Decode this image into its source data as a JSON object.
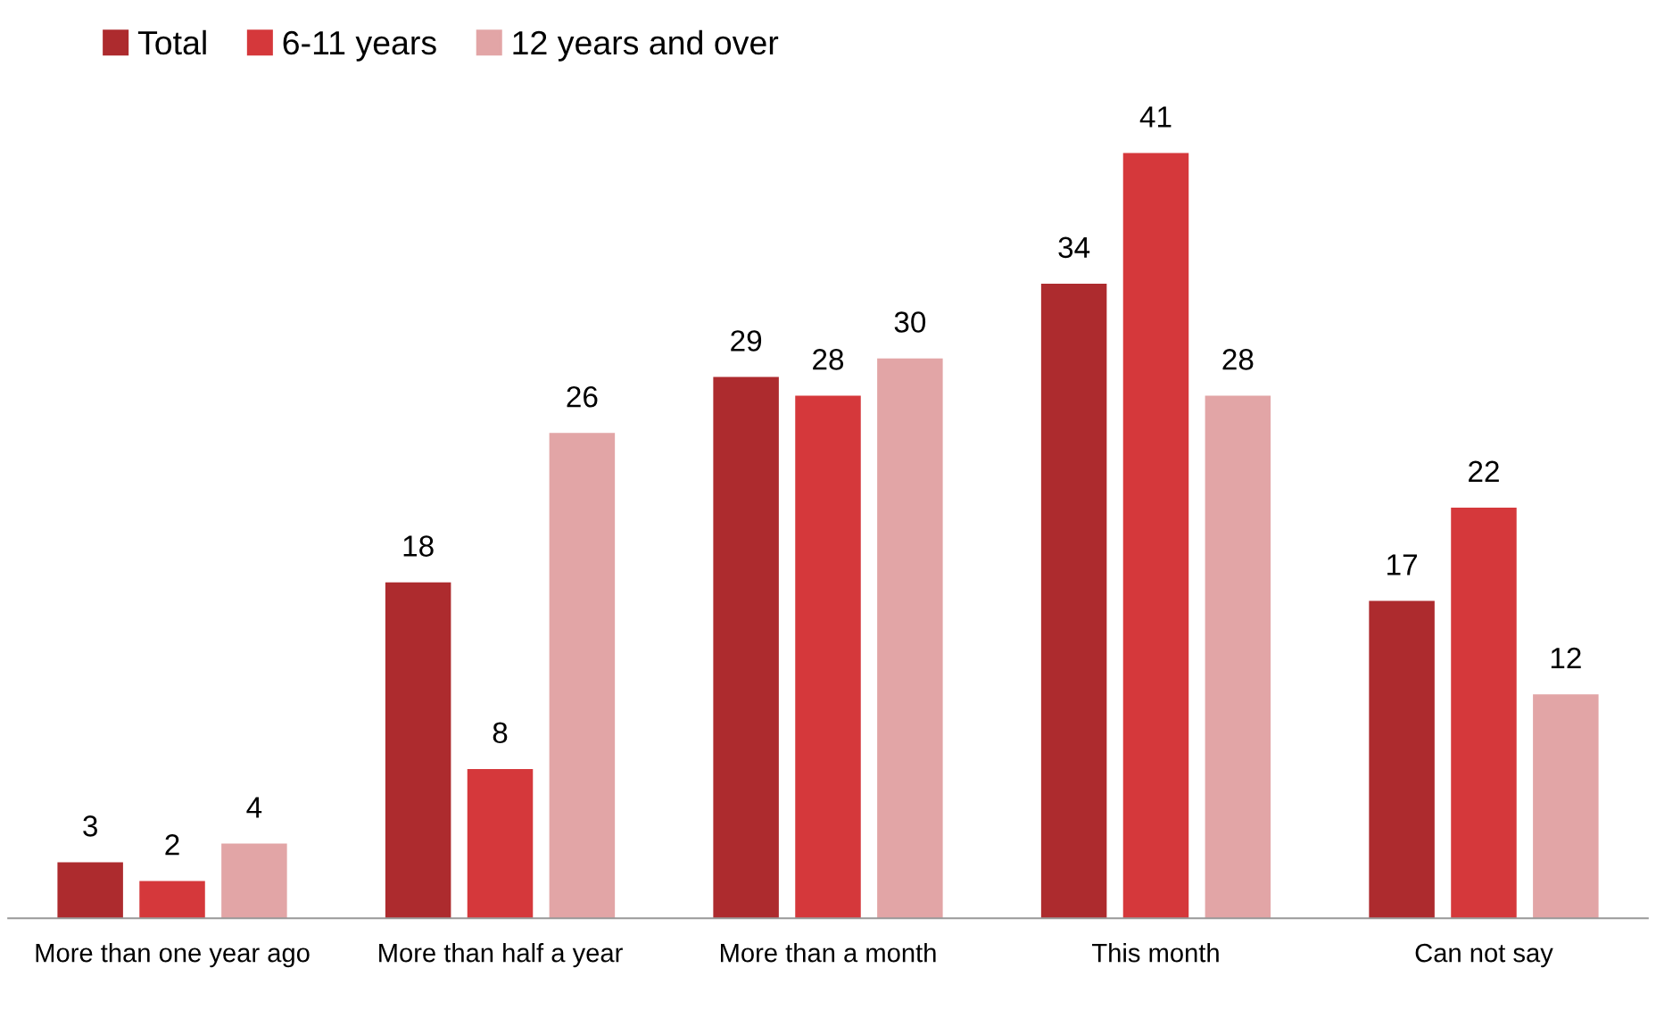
{
  "chart_data": {
    "type": "bar",
    "categories": [
      "More than one year ago",
      "More than half a year",
      "More than a month",
      "This month",
      "Can not say"
    ],
    "series": [
      {
        "name": "Total",
        "color": "#ad2b2e",
        "values": [
          3,
          18,
          29,
          34,
          17
        ]
      },
      {
        "name": "6-11 years",
        "color": "#d5383b",
        "values": [
          2,
          8,
          28,
          41,
          22
        ]
      },
      {
        "name": "12 years and over",
        "color": "#e2a5a6",
        "values": [
          4,
          26,
          30,
          28,
          12
        ]
      }
    ],
    "data_labels": true,
    "legend": "top left",
    "grid": false
  }
}
